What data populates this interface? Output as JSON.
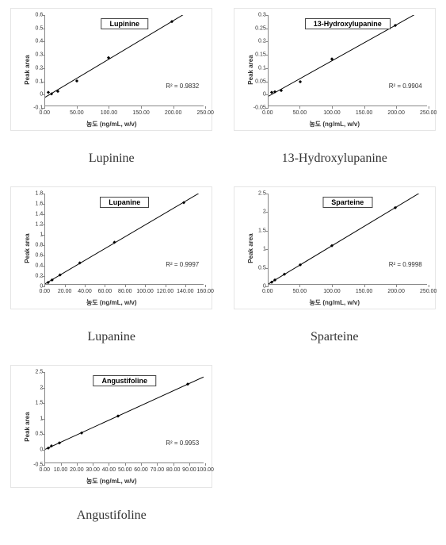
{
  "layout": {
    "cols": 2
  },
  "common": {
    "ylabel": "Peak area",
    "xlabel": "농도 (ng/mL, w/v)",
    "axis_color": "#888888",
    "line_color": "#000000",
    "marker_color": "#000000",
    "background": "#ffffff",
    "line_width": 1,
    "marker_size": 3,
    "tick_fontsize": 7,
    "label_fontsize": 8,
    "title_fontsize": 9
  },
  "charts": [
    {
      "name": "Lupinine",
      "r2": "R² = 0.9832",
      "xlim": [
        0,
        250
      ],
      "xticks": [
        0,
        50,
        100,
        150,
        200,
        250
      ],
      "xtick_labels": [
        "0.00",
        "50.00",
        "100.00",
        "150.00",
        "200.00",
        "250.00"
      ],
      "ylim": [
        -0.1,
        0.6
      ],
      "yticks": [
        -0.1,
        0,
        0.1,
        0.2,
        0.3,
        0.4,
        0.5,
        0.6
      ],
      "points": [
        [
          5,
          0.002
        ],
        [
          10,
          -0.01
        ],
        [
          20,
          0.01
        ],
        [
          50,
          0.09
        ],
        [
          100,
          0.27
        ],
        [
          200,
          0.55
        ]
      ]
    },
    {
      "name": "13-Hydroxylupanine",
      "r2": "R² = 0.9904",
      "xlim": [
        0,
        250
      ],
      "xticks": [
        0,
        50,
        100,
        150,
        200,
        250
      ],
      "xtick_labels": [
        "0.00",
        "50.00",
        "100.00",
        "150.00",
        "200.00",
        "250.00"
      ],
      "ylim": [
        -0.05,
        0.3
      ],
      "yticks": [
        -0.05,
        0,
        0.05,
        0.1,
        0.15,
        0.2,
        0.25,
        0.3
      ],
      "points": [
        [
          5,
          0.001
        ],
        [
          10,
          0.003
        ],
        [
          20,
          0.008
        ],
        [
          50,
          0.042
        ],
        [
          100,
          0.13
        ],
        [
          200,
          0.26
        ]
      ]
    },
    {
      "name": "Lupanine",
      "r2": "R² = 0.9997",
      "xlim": [
        0,
        160
      ],
      "xticks": [
        0,
        20,
        40,
        60,
        80,
        100,
        120,
        140,
        160
      ],
      "xtick_labels": [
        "0.00",
        "20.00",
        "40.00",
        "60.00",
        "80.00",
        "100.00",
        "120.00",
        "140.00",
        "160.00"
      ],
      "ylim": [
        0,
        1.8
      ],
      "yticks": [
        0,
        0.2,
        0.4,
        0.6,
        0.8,
        1,
        1.2,
        1.4,
        1.6,
        1.8
      ],
      "points": [
        [
          3,
          0.03
        ],
        [
          7,
          0.08
        ],
        [
          15,
          0.18
        ],
        [
          35,
          0.42
        ],
        [
          70,
          0.83
        ],
        [
          140,
          1.62
        ]
      ]
    },
    {
      "name": "Sparteine",
      "r2": "R² = 0.9998",
      "xlim": [
        0,
        250
      ],
      "xticks": [
        0,
        50,
        100,
        150,
        200,
        250
      ],
      "xtick_labels": [
        "0.00",
        "50.00",
        "100.00",
        "150.00",
        "200.00",
        "250.00"
      ],
      "ylim": [
        0,
        2.5
      ],
      "yticks": [
        0,
        0.5,
        1,
        1.5,
        2,
        2.5
      ],
      "points": [
        [
          5,
          0.05
        ],
        [
          10,
          0.11
        ],
        [
          25,
          0.27
        ],
        [
          50,
          0.53
        ],
        [
          100,
          1.06
        ],
        [
          200,
          2.11
        ]
      ]
    },
    {
      "name": "Angustifoline",
      "r2": "R² = 0.9953",
      "xlim": [
        0,
        100
      ],
      "xticks": [
        0,
        10,
        20,
        30,
        40,
        50,
        60,
        70,
        80,
        90,
        100
      ],
      "xtick_labels": [
        "0.00",
        "10.00",
        "20.00",
        "30.00",
        "40.00",
        "50.00",
        "60.00",
        "70.00",
        "80.00",
        "90.00",
        "100.00"
      ],
      "ylim": [
        -0.5,
        2.5
      ],
      "yticks": [
        -0.5,
        0,
        0.5,
        1,
        1.5,
        2,
        2.5
      ],
      "points": [
        [
          2,
          -0.02
        ],
        [
          4,
          0.05
        ],
        [
          9,
          0.15
        ],
        [
          23,
          0.48
        ],
        [
          46,
          1.04
        ],
        [
          90,
          2.1
        ]
      ]
    }
  ]
}
